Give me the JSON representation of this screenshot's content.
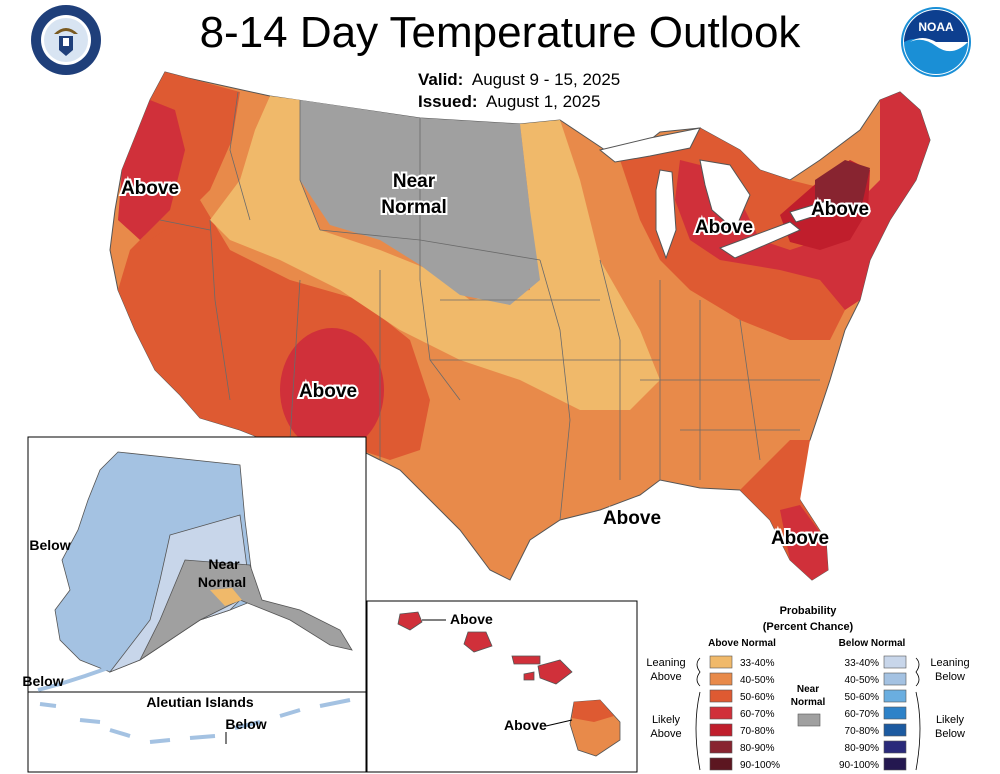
{
  "header": {
    "title": "8-14 Day Temperature Outlook",
    "valid_label": "Valid:",
    "valid_value": "August 9 - 15, 2025",
    "issued_label": "Issued:",
    "issued_value": "August 1, 2025",
    "left_logo": "department-of-commerce-seal",
    "right_logo": "noaa-logo",
    "noaa_text": "NOAA"
  },
  "map_labels": {
    "pacific_nw": "Above",
    "northern_plains": "Near\nNormal",
    "southwest": "Above",
    "great_lakes": "Above",
    "northeast": "Above",
    "gulf_coast": "Above",
    "florida": "Above"
  },
  "alaska_inset": {
    "below_west": "Below",
    "near_normal": "Near\nNormal",
    "below_southwest": "Below",
    "aleutian_title": "Aleutian Islands",
    "aleutian_below": "Below"
  },
  "hawaii_inset": {
    "above_north": "Above",
    "above_south": "Above"
  },
  "legend": {
    "title_line1": "Probability",
    "title_line2": "(Percent Chance)",
    "above_header": "Above Normal",
    "below_header": "Below Normal",
    "near_normal_label": "Near\nNormal",
    "leaning_above": "Leaning\nAbove",
    "likely_above": "Likely\nAbove",
    "leaning_below": "Leaning\nBelow",
    "likely_below": "Likely\nBelow",
    "above_bins": [
      {
        "range": "33-40%",
        "color": "#f0b96a"
      },
      {
        "range": "40-50%",
        "color": "#e88a4a"
      },
      {
        "range": "50-60%",
        "color": "#de5a32"
      },
      {
        "range": "60-70%",
        "color": "#d0303a"
      },
      {
        "range": "70-80%",
        "color": "#c01e2c"
      },
      {
        "range": "80-90%",
        "color": "#882430"
      },
      {
        "range": "90-100%",
        "color": "#5c1620"
      }
    ],
    "below_bins": [
      {
        "range": "33-40%",
        "color": "#c8d6ea"
      },
      {
        "range": "40-50%",
        "color": "#a4c2e2"
      },
      {
        "range": "50-60%",
        "color": "#6aaee0"
      },
      {
        "range": "60-70%",
        "color": "#2e82c8"
      },
      {
        "range": "70-80%",
        "color": "#1c5aa0"
      },
      {
        "range": "80-90%",
        "color": "#2a2a7a"
      },
      {
        "range": "90-100%",
        "color": "#241850"
      }
    ],
    "near_normal_color": "#a0a0a0"
  }
}
